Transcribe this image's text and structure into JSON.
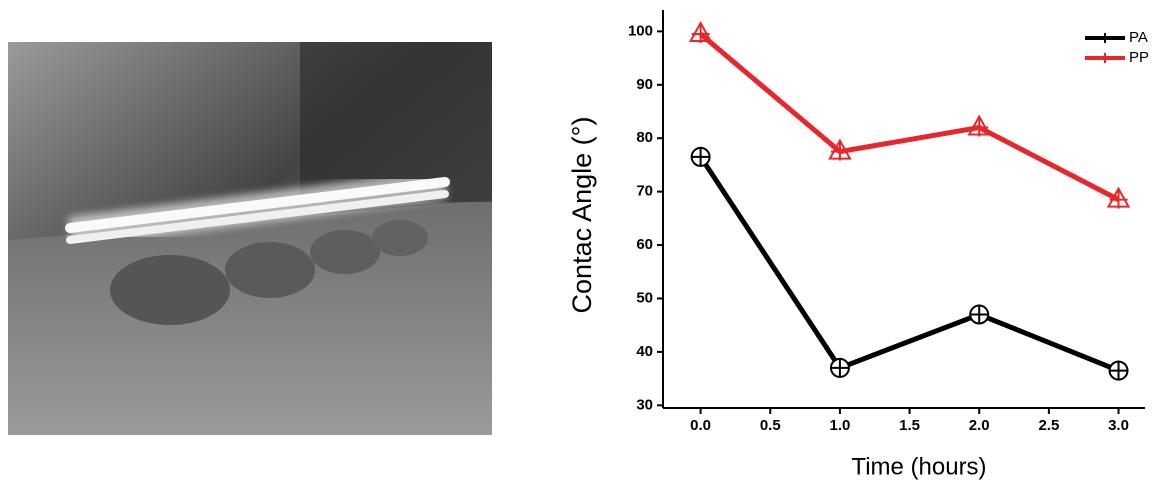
{
  "chart_data": {
    "type": "line",
    "xlabel": "Time (hours)",
    "ylabel": "Contac Angle (°)",
    "x": [
      0,
      1,
      2,
      3
    ],
    "series": [
      {
        "name": "PA",
        "color": "#000000",
        "marker": "circle-plus",
        "values": [
          76.5,
          37,
          47,
          36.5
        ]
      },
      {
        "name": "PP",
        "color": "#e8262b",
        "marker": "triangle-plus",
        "values": [
          99.5,
          77.5,
          82,
          68.5
        ]
      }
    ],
    "xlim": [
      -0.27,
      3.19
    ],
    "ylim": [
      29.5,
      104
    ],
    "xticks": [
      {
        "value": 0,
        "label": "0.0"
      },
      0.5,
      {
        "value": 1,
        "label": "1.0"
      },
      1.5,
      {
        "value": 2,
        "label": "2.0"
      },
      2.5,
      {
        "value": 3,
        "label": "3.0"
      }
    ],
    "yticks": [
      30,
      40,
      50,
      60,
      70,
      80,
      90,
      100
    ],
    "legend": "top-right"
  }
}
